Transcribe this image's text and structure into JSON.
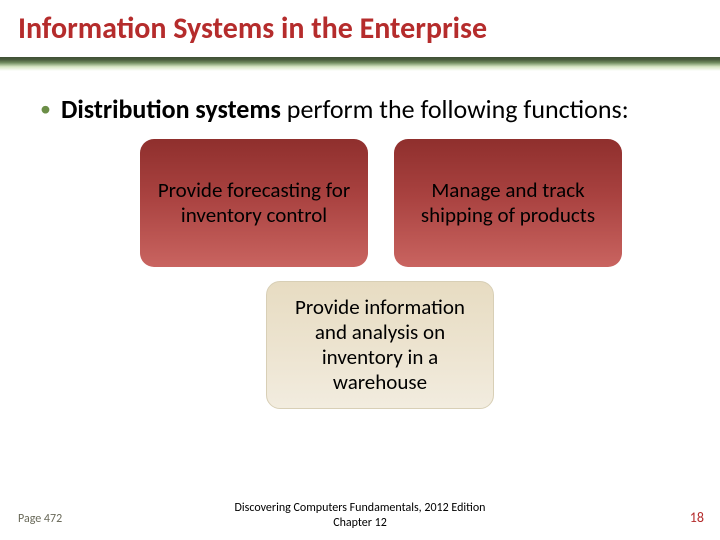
{
  "title": "Information Systems in the Enterprise",
  "bullet": {
    "bold": "Distribution systems",
    "rest": " perform the following functions:"
  },
  "boxes": {
    "top_left": "Provide forecasting for inventory control",
    "top_right": "Manage and track shipping of products",
    "bottom": "Provide information and analysis on inventory in a warehouse"
  },
  "footer": {
    "page_ref": "Page 472",
    "source_line1": "Discovering Computers Fundamentals, 2012 Edition",
    "source_line2": "Chapter 12",
    "slide_number": "18"
  },
  "colors": {
    "title": "#b52c2c",
    "bullet_marker": "#6b8e47",
    "footer_left": "#6a6a5a",
    "slide_number": "#b52c2c"
  }
}
